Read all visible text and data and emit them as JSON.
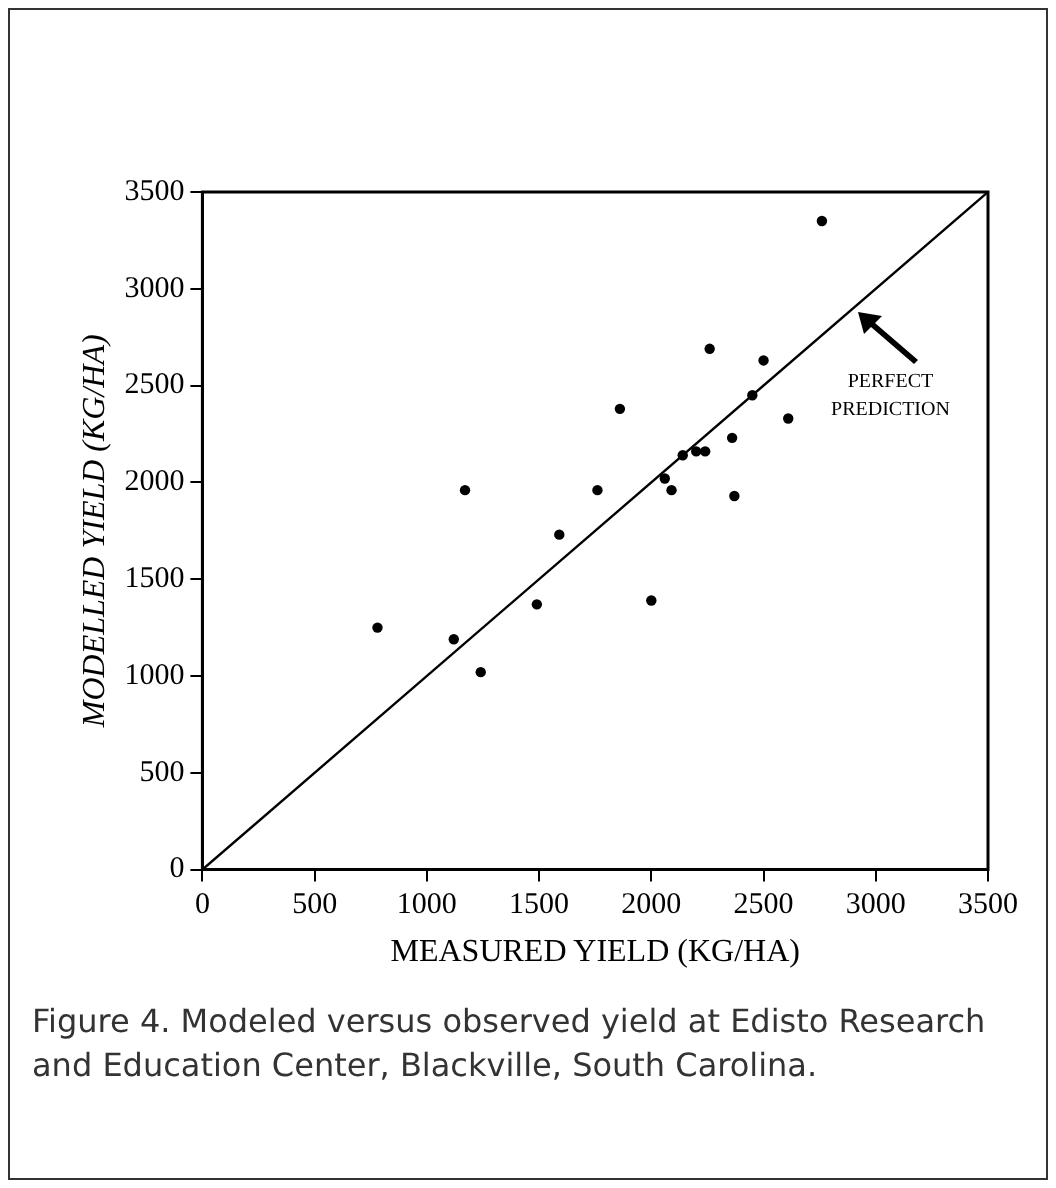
{
  "chart_data": {
    "type": "scatter",
    "xlabel": "MEASURED YIELD (KG/HA)",
    "ylabel": "MODELLED YIELD (KG/HA)",
    "xlim": [
      0,
      3500
    ],
    "ylim": [
      0,
      3500
    ],
    "xticks": [
      0,
      500,
      1000,
      1500,
      2000,
      2500,
      3000,
      3500
    ],
    "yticks": [
      0,
      500,
      1000,
      1500,
      2000,
      2500,
      3000,
      3500
    ],
    "marker": "circle",
    "grid": false,
    "legend": false,
    "series": [
      {
        "color": "#000000",
        "x": [
          780,
          1120,
          1170,
          1240,
          1490,
          1590,
          1760,
          1860,
          2000,
          2060,
          2090,
          2140,
          2200,
          2240,
          2260,
          2360,
          2370,
          2450,
          2500,
          2610,
          2760
        ],
        "values": [
          1250,
          1190,
          1960,
          1020,
          1370,
          1730,
          1960,
          2380,
          1390,
          2020,
          1960,
          2140,
          2160,
          2160,
          2690,
          2230,
          1930,
          2450,
          2630,
          2330,
          3350
        ]
      },
      {
        "type": "line",
        "color": "#000000",
        "marker": "none",
        "x": [
          0,
          3500
        ],
        "values": [
          0,
          3500
        ]
      }
    ],
    "annotations": [
      "PERFECT PREDICTION",
      "Figure 4. Modeled versus observed yield at Edisto Research and Education Center, Blackville, South Carolina."
    ]
  }
}
